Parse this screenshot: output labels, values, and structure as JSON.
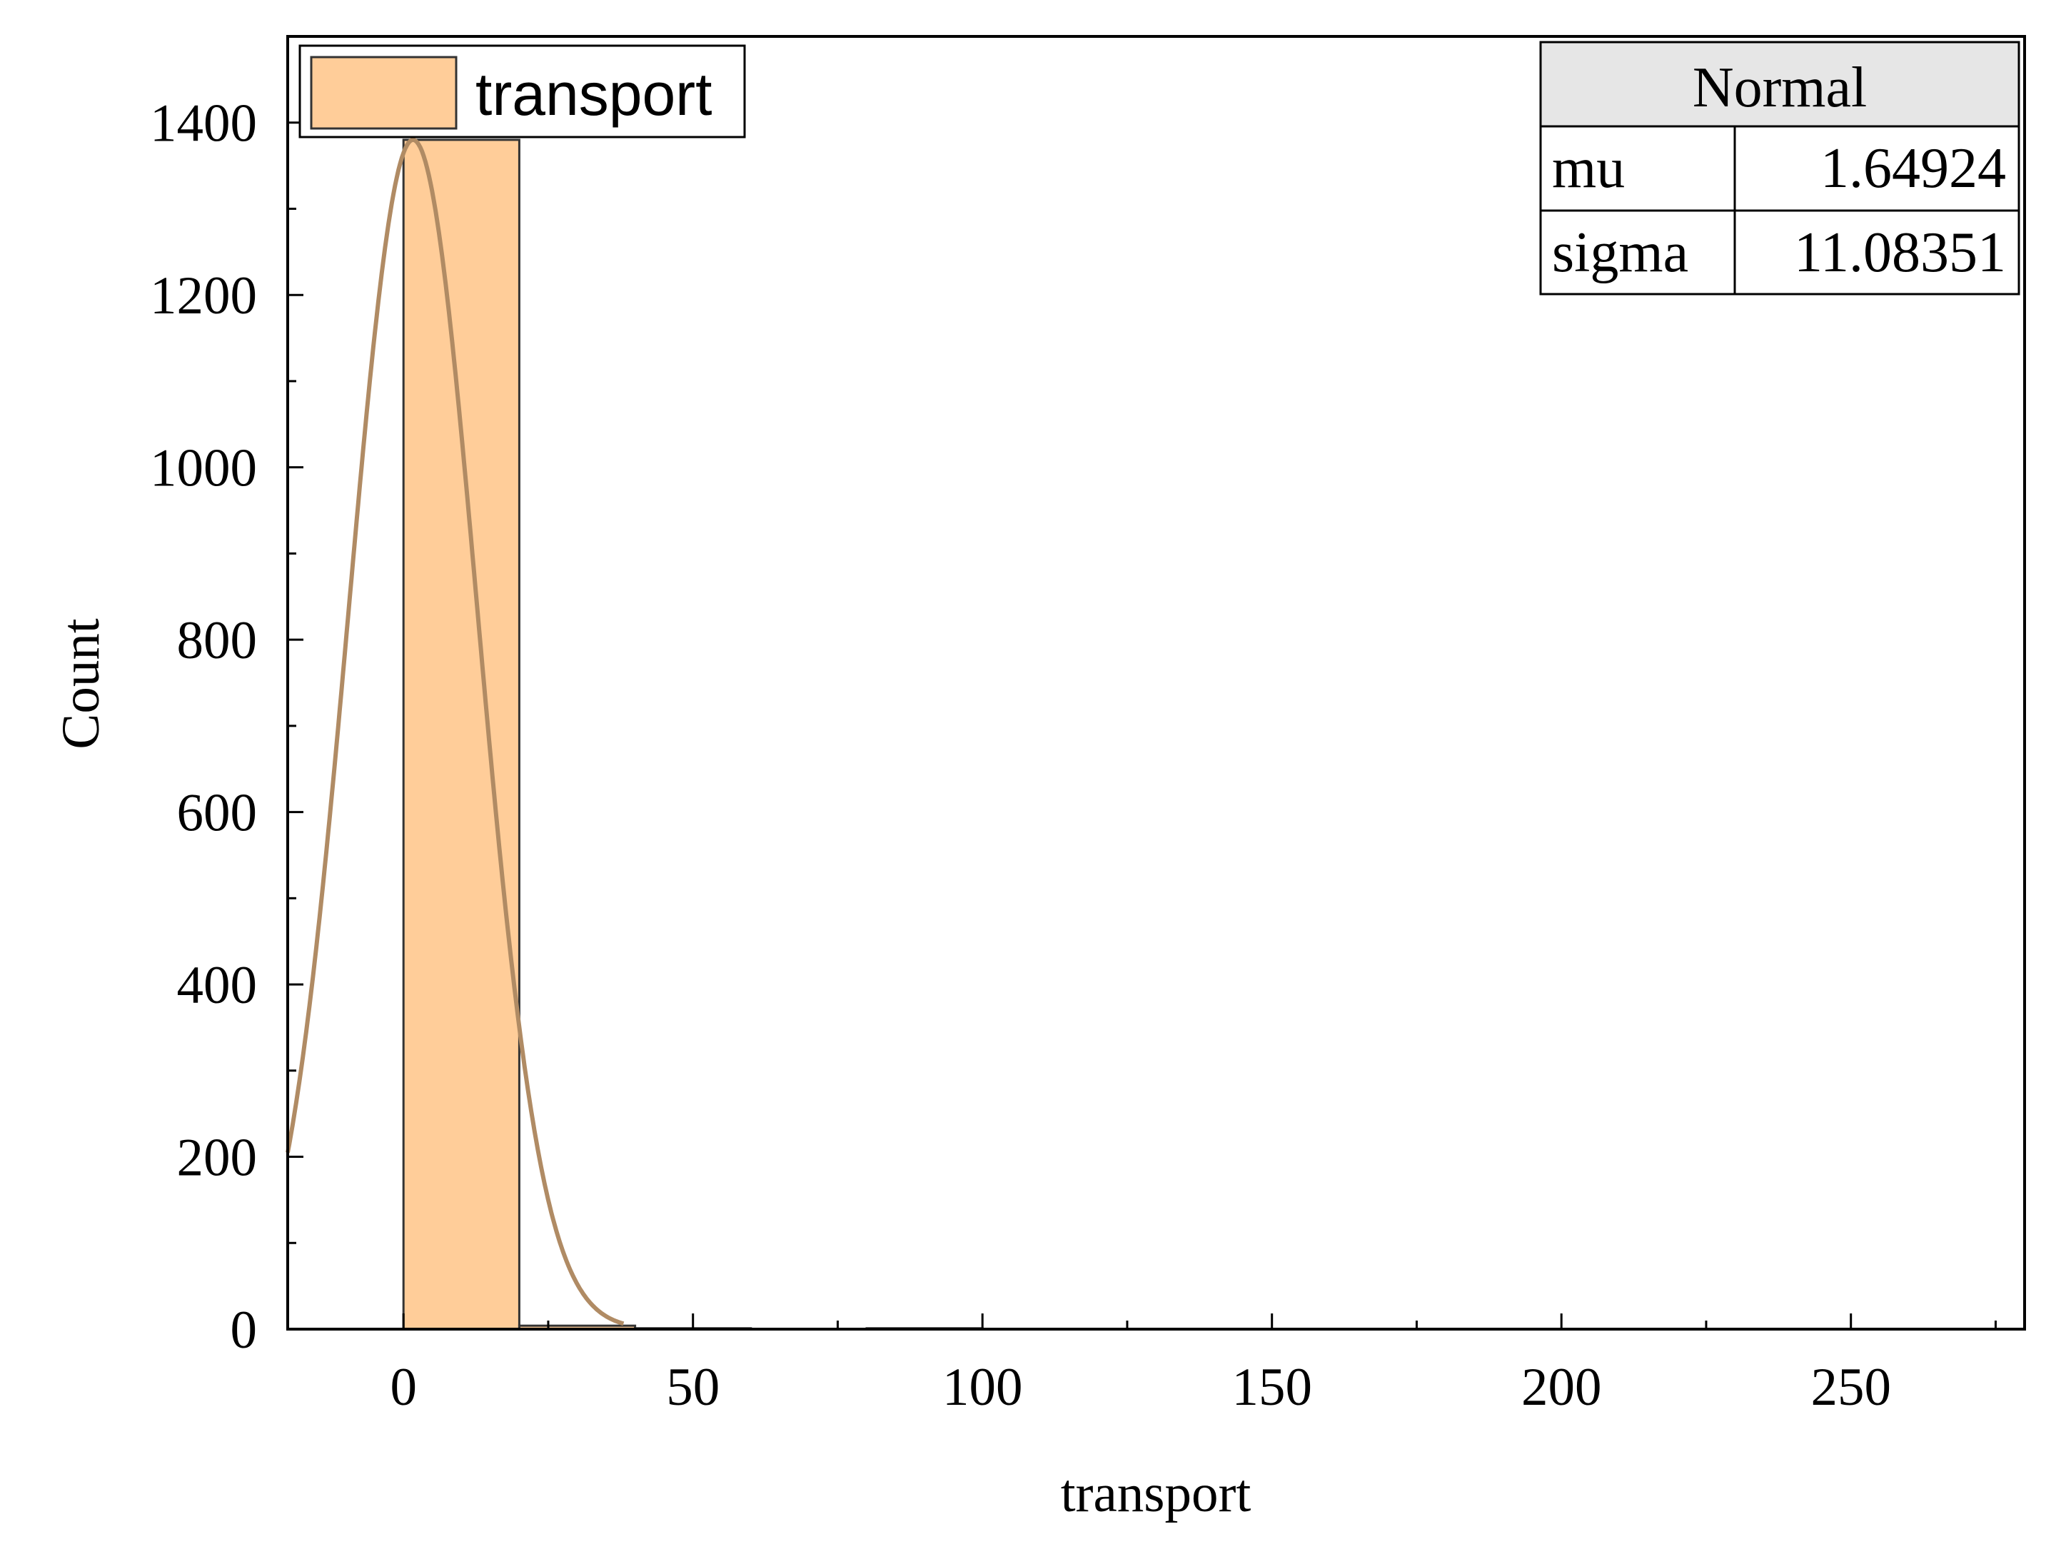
{
  "chart_data": {
    "type": "bar",
    "subtype": "histogram",
    "xlabel": "transport",
    "ylabel": "Count",
    "xlim": [
      -20,
      280
    ],
    "ylim": [
      0,
      1500
    ],
    "xticks": [
      "0",
      "50",
      "100",
      "150",
      "200",
      "250"
    ],
    "yticks": [
      "0",
      "200",
      "400",
      "600",
      "800",
      "1000",
      "1200",
      "1400"
    ],
    "series": [
      {
        "name": "transport",
        "bins": [
          {
            "x0": 0,
            "x1": 20,
            "count": 1380
          },
          {
            "x0": 20,
            "x1": 40,
            "count": 4
          },
          {
            "x0": 40,
            "x1": 60,
            "count": 1
          },
          {
            "x0": 60,
            "x1": 80,
            "count": 0
          },
          {
            "x0": 80,
            "x1": 100,
            "count": 1
          }
        ]
      }
    ],
    "fit": {
      "type": "Normal",
      "mu": 1.64924,
      "sigma": 11.08351,
      "peak_count": 1380,
      "x_range": [
        -20,
        38
      ]
    },
    "legend": {
      "position": "top-left",
      "entries": [
        "transport"
      ]
    },
    "stats_table": {
      "title": "Normal",
      "rows": [
        {
          "label": "mu",
          "value": "1.64924"
        },
        {
          "label": "sigma",
          "value": "11.08351"
        }
      ],
      "position": "top-right"
    },
    "colors": {
      "bar_fill": "#FFCD99",
      "bar_stroke": "#333333",
      "curve": "#B08B64",
      "table_header": "#E6E6E6"
    },
    "grid": false
  }
}
